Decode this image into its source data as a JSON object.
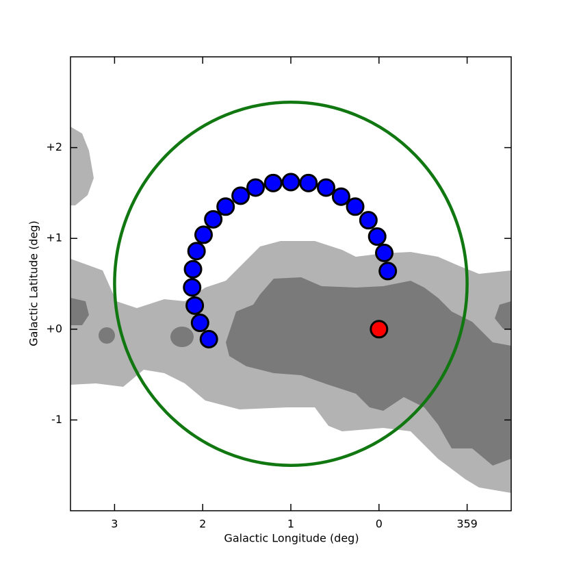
{
  "chart_data": {
    "type": "scatter",
    "xlabel": "Galactic Longitude (deg)",
    "ylabel": "Galactic Latitude (deg)",
    "xlim": [
      3.5,
      -1.5
    ],
    "ylim": [
      -2,
      3
    ],
    "xticks": [
      3,
      2,
      1,
      0,
      {
        "value": -1,
        "label": "359"
      }
    ],
    "yticks": [
      {
        "value": 2,
        "label": "+2"
      },
      {
        "value": 1,
        "label": "+1"
      },
      {
        "value": 0,
        "label": "+0"
      },
      -1
    ],
    "grid": false,
    "circle": {
      "center_x": 1,
      "center_y": 0.5,
      "radius": 2,
      "color": "#117711"
    },
    "series": [
      {
        "color": "#0000ff",
        "x": [
          1.93,
          2.03,
          2.09,
          2.12,
          2.11,
          2.07,
          1.99,
          1.88,
          1.74,
          1.57,
          1.4,
          1.2,
          1.0,
          0.8,
          0.6,
          0.43,
          0.27,
          0.12,
          0.02,
          -0.06,
          -0.1
        ],
        "values": [
          -0.11,
          0.07,
          0.26,
          0.46,
          0.66,
          0.86,
          1.04,
          1.21,
          1.35,
          1.47,
          1.56,
          1.61,
          1.62,
          1.61,
          1.56,
          1.46,
          1.35,
          1.2,
          1.02,
          0.84,
          0.64
        ]
      },
      {
        "color": "#ff0000",
        "x": [
          0
        ],
        "values": [
          0
        ]
      }
    ]
  }
}
